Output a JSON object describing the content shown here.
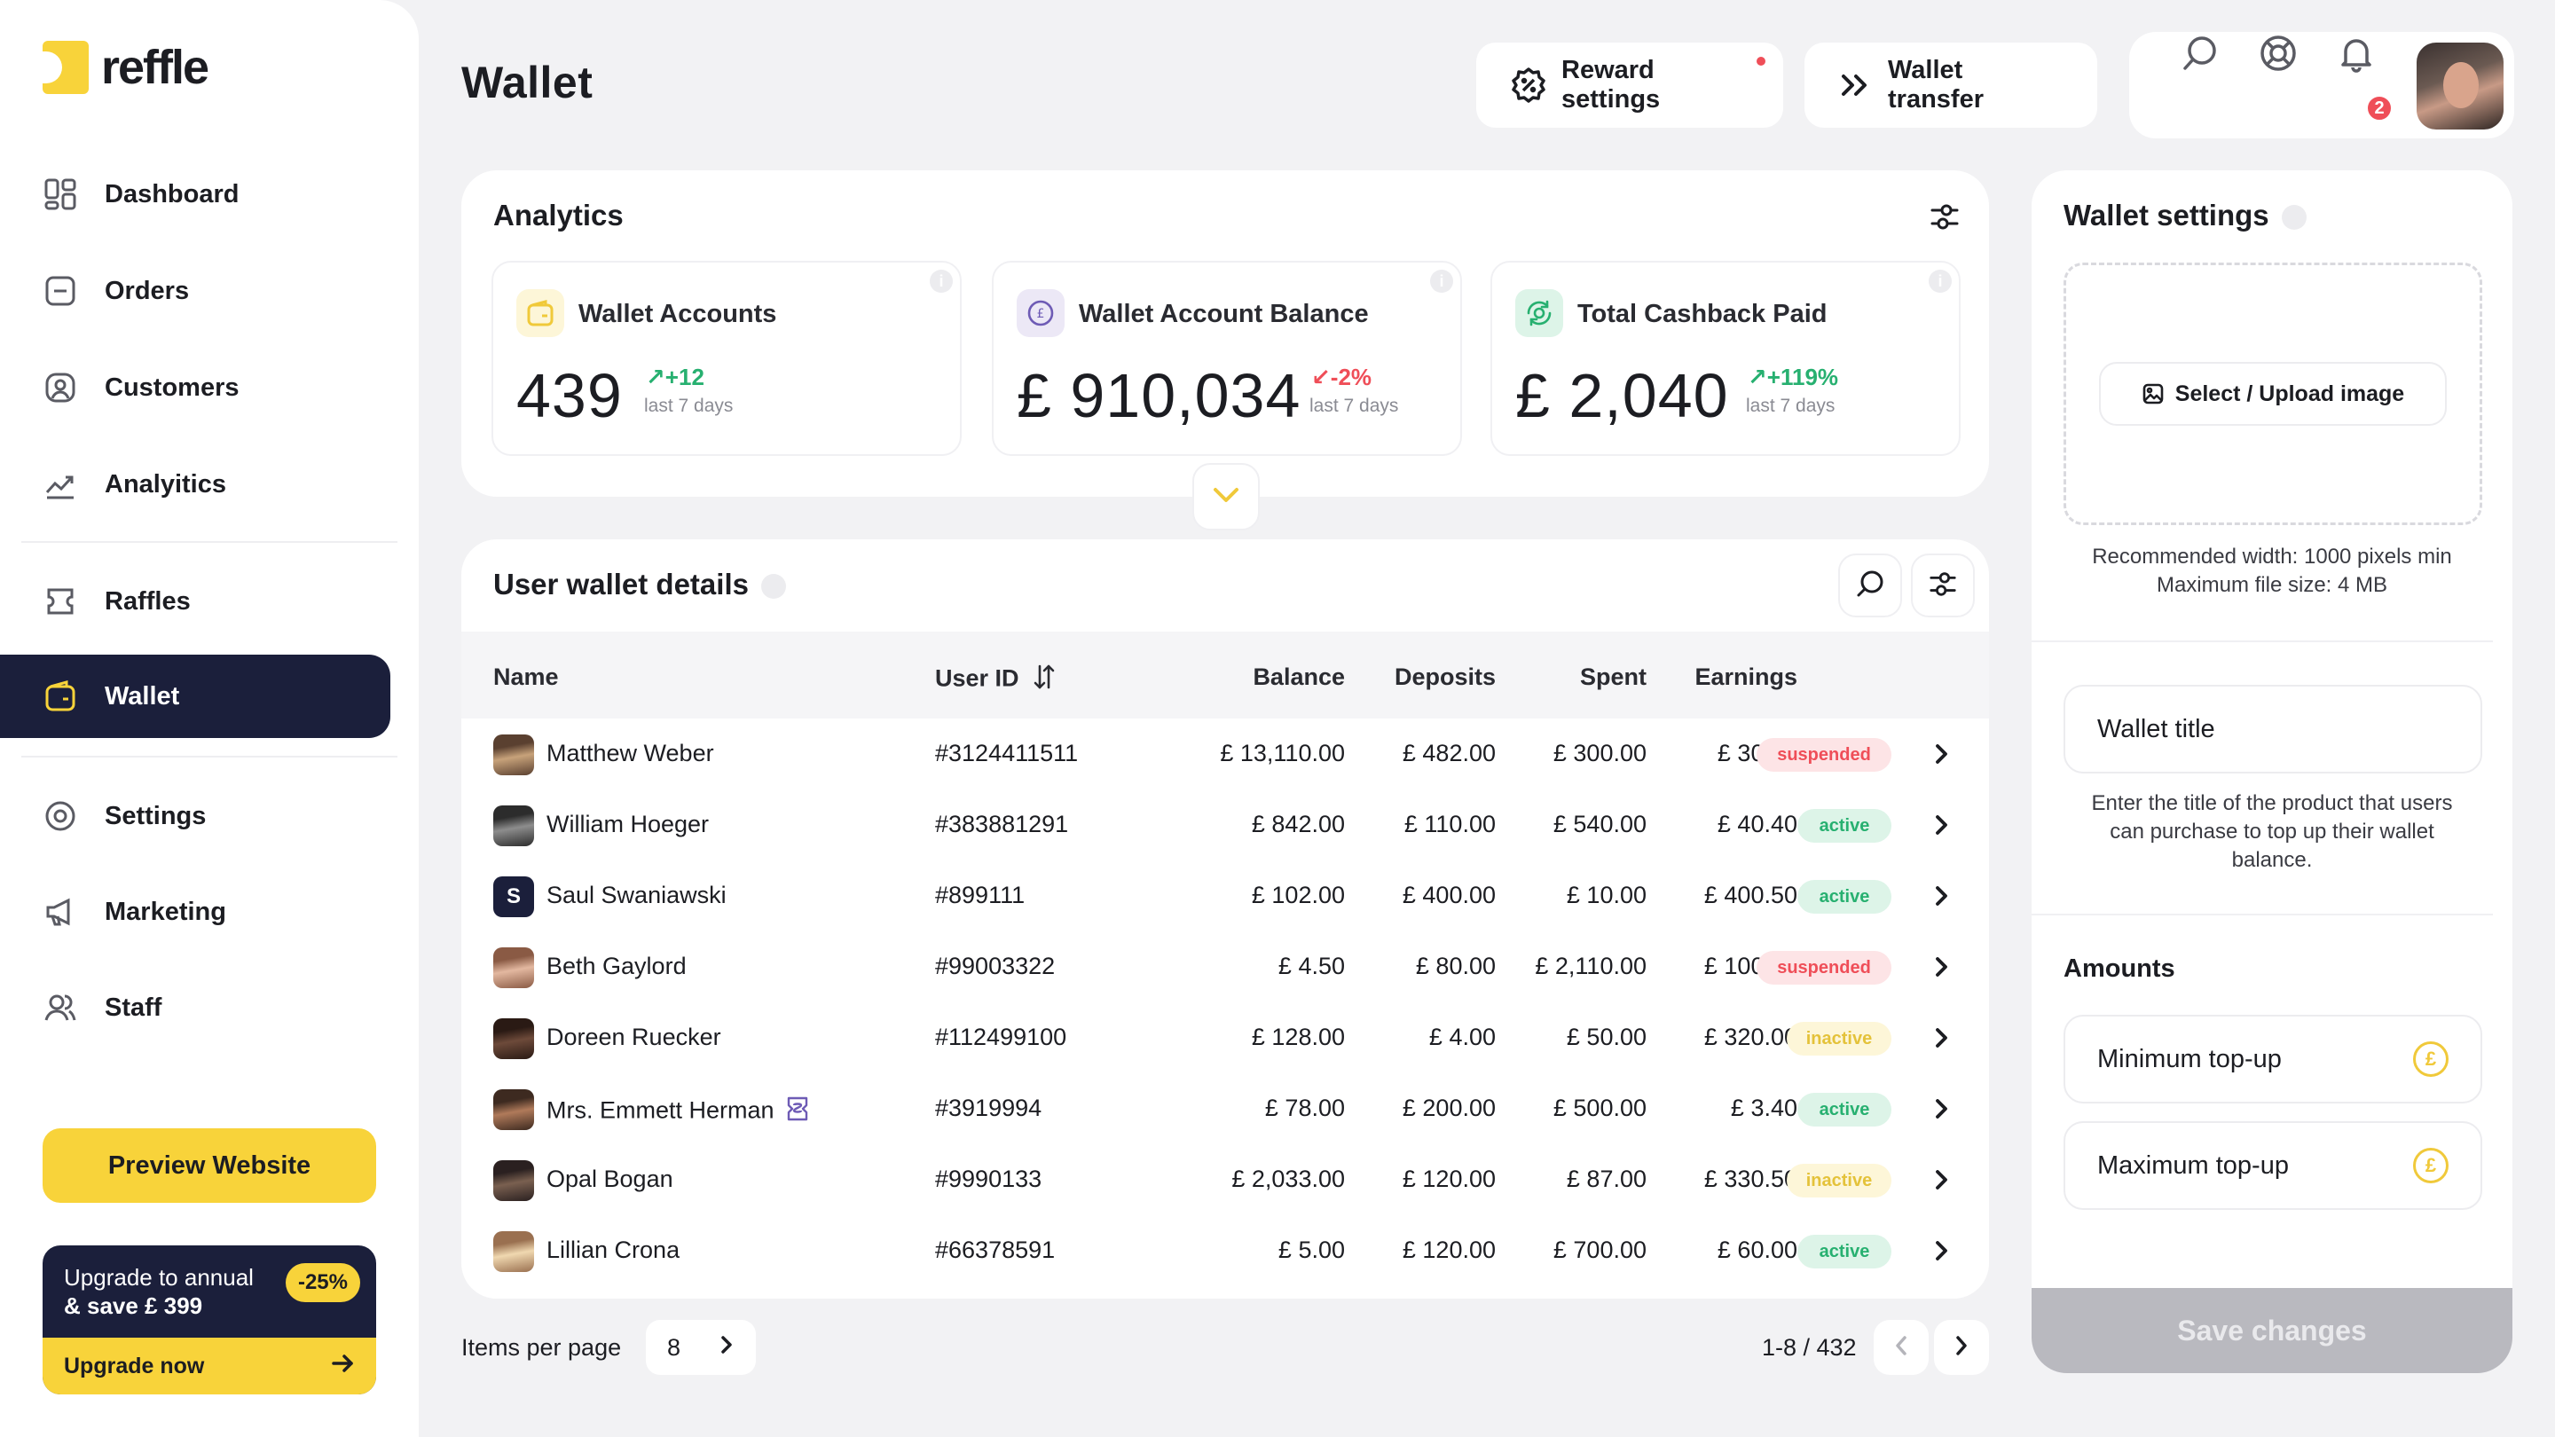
{
  "brand": {
    "name": "reffle",
    "accent": "#f8d33a",
    "dark": "#1b1f3b"
  },
  "sidebar": {
    "items": [
      {
        "label": "Dashboard",
        "icon": "dashboard-icon"
      },
      {
        "label": "Orders",
        "icon": "orders-icon"
      },
      {
        "label": "Customers",
        "icon": "customers-icon"
      },
      {
        "label": "Analyitics",
        "icon": "analytics-icon"
      },
      {
        "label": "Raffles",
        "icon": "raffles-icon"
      },
      {
        "label": "Wallet",
        "icon": "wallet-icon",
        "active": true
      },
      {
        "label": "Settings",
        "icon": "settings-icon"
      },
      {
        "label": "Marketing",
        "icon": "marketing-icon"
      },
      {
        "label": "Staff",
        "icon": "staff-icon"
      }
    ],
    "preview_label": "Preview Website",
    "upgrade": {
      "line1": "Upgrade to annual",
      "line2": "& save £ 399",
      "discount": "-25%",
      "cta": "Upgrade now"
    }
  },
  "header": {
    "title": "Wallet",
    "reward_settings": "Reward settings",
    "wallet_transfer": "Wallet transfer",
    "notification_count": "2"
  },
  "analytics": {
    "title": "Analytics",
    "stats": [
      {
        "label": "Wallet Accounts",
        "value": "439",
        "delta": "+12",
        "direction": "up",
        "period": "last 7 days"
      },
      {
        "label": "Wallet Account Balance",
        "value": "£ 910,034",
        "delta": "-2%",
        "direction": "down",
        "period": "last 7 days"
      },
      {
        "label": "Total Cashback Paid",
        "value": "£ 2,040",
        "delta": "+119%",
        "direction": "up",
        "period": "last 7 days"
      }
    ]
  },
  "table": {
    "title": "User wallet details",
    "columns": {
      "name": "Name",
      "user_id": "User ID",
      "balance": "Balance",
      "deposits": "Deposits",
      "spent": "Spent",
      "earnings": "Earnings"
    },
    "rows": [
      {
        "name": "Matthew Weber",
        "id": "#3124411511",
        "balance": "£ 13,110.00",
        "deposits": "£ 482.00",
        "spent": "£ 300.00",
        "earnings": "£ 30.00",
        "status": "suspended"
      },
      {
        "name": "William Hoeger",
        "id": "#383881291",
        "balance": "£ 842.00",
        "deposits": "£ 110.00",
        "spent": "£ 540.00",
        "earnings": "£ 40.40",
        "status": "active"
      },
      {
        "name": "Saul Swaniawski",
        "id": "#899111",
        "balance": "£ 102.00",
        "deposits": "£ 400.00",
        "spent": "£ 10.00",
        "earnings": "£ 400.50",
        "status": "active",
        "initial": "S"
      },
      {
        "name": "Beth Gaylord",
        "id": "#99003322",
        "balance": "£ 4.50",
        "deposits": "£ 80.00",
        "spent": "£ 2,110.00",
        "earnings": "£ 100.00",
        "status": "suspended"
      },
      {
        "name": "Doreen Ruecker",
        "id": "#112499100",
        "balance": "£ 128.00",
        "deposits": "£ 4.00",
        "spent": "£ 50.00",
        "earnings": "£ 320.00",
        "status": "inactive"
      },
      {
        "name": "Mrs. Emmett Herman",
        "id": "#3919994",
        "balance": "£ 78.00",
        "deposits": "£ 200.00",
        "spent": "£ 500.00",
        "earnings": "£ 3.40",
        "status": "active",
        "staff": true
      },
      {
        "name": "Opal Bogan",
        "id": "#9990133",
        "balance": "£ 2,033.00",
        "deposits": "£ 120.00",
        "spent": "£ 87.00",
        "earnings": "£ 330.50",
        "status": "inactive"
      },
      {
        "name": "Lillian Crona",
        "id": "#66378591",
        "balance": "£ 5.00",
        "deposits": "£ 120.00",
        "spent": "£ 700.00",
        "earnings": "£ 60.00",
        "status": "active"
      }
    ]
  },
  "pagination": {
    "items_label": "Items per page",
    "per_page": "8",
    "range": "1-8 / 432"
  },
  "wallet_settings": {
    "title": "Wallet settings",
    "upload_label": "Select / Upload image",
    "upload_note_1": "Recommended width: 1000 pixels min",
    "upload_note_2": "Maximum file size: 4 MB",
    "wallet_title_placeholder": "Wallet title",
    "wallet_title_note": "Enter the title of the product that users can purchase to top up their wallet balance.",
    "amounts_title": "Amounts",
    "min_topup": "Minimum top-up",
    "max_topup": "Maximum top-up",
    "save_label": "Save changes"
  }
}
